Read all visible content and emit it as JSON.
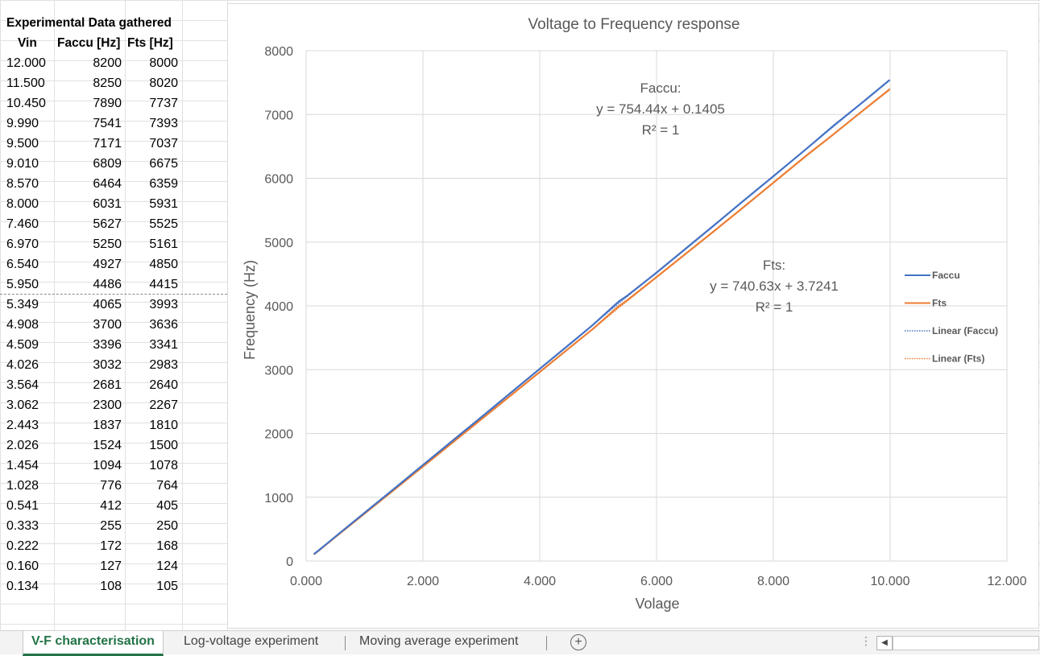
{
  "table": {
    "title": "Experimental Data gathered",
    "headers": [
      "Vin",
      "Faccu [Hz]",
      "Fts [Hz]"
    ],
    "rows": [
      [
        "12.000",
        "8200",
        "8000"
      ],
      [
        "11.500",
        "8250",
        "8020"
      ],
      [
        "10.450",
        "7890",
        "7737"
      ],
      [
        "9.990",
        "7541",
        "7393"
      ],
      [
        "9.500",
        "7171",
        "7037"
      ],
      [
        "9.010",
        "6809",
        "6675"
      ],
      [
        "8.570",
        "6464",
        "6359"
      ],
      [
        "8.000",
        "6031",
        "5931"
      ],
      [
        "7.460",
        "5627",
        "5525"
      ],
      [
        "6.970",
        "5250",
        "5161"
      ],
      [
        "6.540",
        "4927",
        "4850"
      ],
      [
        "5.950",
        "4486",
        "4415"
      ],
      [
        "5.349",
        "4065",
        "3993"
      ],
      [
        "4.908",
        "3700",
        "3636"
      ],
      [
        "4.509",
        "3396",
        "3341"
      ],
      [
        "4.026",
        "3032",
        "2983"
      ],
      [
        "3.564",
        "2681",
        "2640"
      ],
      [
        "3.062",
        "2300",
        "2267"
      ],
      [
        "2.443",
        "1837",
        "1810"
      ],
      [
        "2.026",
        "1524",
        "1500"
      ],
      [
        "1.454",
        "1094",
        "1078"
      ],
      [
        "1.028",
        "776",
        "764"
      ],
      [
        "0.541",
        "412",
        "405"
      ],
      [
        "0.333",
        "255",
        "250"
      ],
      [
        "0.222",
        "172",
        "168"
      ],
      [
        "0.160",
        "127",
        "124"
      ],
      [
        "0.134",
        "108",
        "105"
      ]
    ]
  },
  "chart_data": {
    "type": "line",
    "title": "Voltage to Frequency response",
    "xlabel": "Volage",
    "ylabel": "Frequency (Hz)",
    "xlim": [
      0,
      12
    ],
    "ylim": [
      0,
      8000
    ],
    "x_ticks": [
      "0.000",
      "2.000",
      "4.000",
      "6.000",
      "8.000",
      "10.000",
      "12.000"
    ],
    "y_ticks": [
      "0",
      "1000",
      "2000",
      "3000",
      "4000",
      "5000",
      "6000",
      "7000",
      "8000"
    ],
    "grid": true,
    "legend_position": "right",
    "series": [
      {
        "name": "Faccu",
        "color": "#4472c4",
        "style": "solid",
        "x": [
          0.134,
          0.16,
          0.222,
          0.333,
          0.541,
          1.028,
          1.454,
          2.026,
          2.443,
          3.062,
          3.564,
          4.026,
          4.509,
          4.908,
          5.349,
          5.5,
          6.0,
          6.97,
          7.46,
          8.0,
          8.57,
          9.01,
          9.5,
          9.99
        ],
        "y": [
          108,
          127,
          172,
          255,
          412,
          776,
          1094,
          1524,
          1837,
          2300,
          2681,
          3032,
          3396,
          3700,
          4065,
          4160,
          4520,
          5250,
          5627,
          6031,
          6464,
          6809,
          7171,
          7541
        ]
      },
      {
        "name": "Fts",
        "color": "#ed7d31",
        "style": "solid",
        "x": [
          0.134,
          0.16,
          0.222,
          0.333,
          0.541,
          1.028,
          1.454,
          2.026,
          2.443,
          3.062,
          3.564,
          4.026,
          4.509,
          4.908,
          5.349,
          5.5,
          6.0,
          6.97,
          7.46,
          8.0,
          8.57,
          9.01,
          9.5,
          9.99
        ],
        "y": [
          105,
          124,
          168,
          250,
          405,
          764,
          1078,
          1500,
          1810,
          2267,
          2640,
          2983,
          3341,
          3636,
          3993,
          4090,
          4450,
          5161,
          5525,
          5931,
          6359,
          6675,
          7037,
          7393
        ]
      },
      {
        "name": "Linear (Faccu)",
        "color": "#4472c4",
        "style": "dotted",
        "x": [
          0.134,
          10.0
        ],
        "y": [
          101.2,
          7544.5
        ]
      },
      {
        "name": "Linear (Fts)",
        "color": "#ed7d31",
        "style": "dotted",
        "x": [
          0.134,
          10.0
        ],
        "y": [
          103.0,
          7410.0
        ]
      }
    ],
    "annotations": [
      {
        "name": "Faccu:",
        "equation": "y = 754.44x + 0.1405",
        "r2": "R² = 1"
      },
      {
        "name": "Fts:",
        "equation": "y = 740.63x + 3.7241",
        "r2": "R² = 1"
      }
    ]
  },
  "tabs": {
    "items": [
      {
        "label": "V-F characterisation",
        "active": true
      },
      {
        "label": "Log-voltage experiment",
        "active": false
      },
      {
        "label": "Moving average experiment",
        "active": false
      }
    ],
    "add_icon": "+",
    "dots": "⋮",
    "scroll_left_icon": "◀"
  }
}
